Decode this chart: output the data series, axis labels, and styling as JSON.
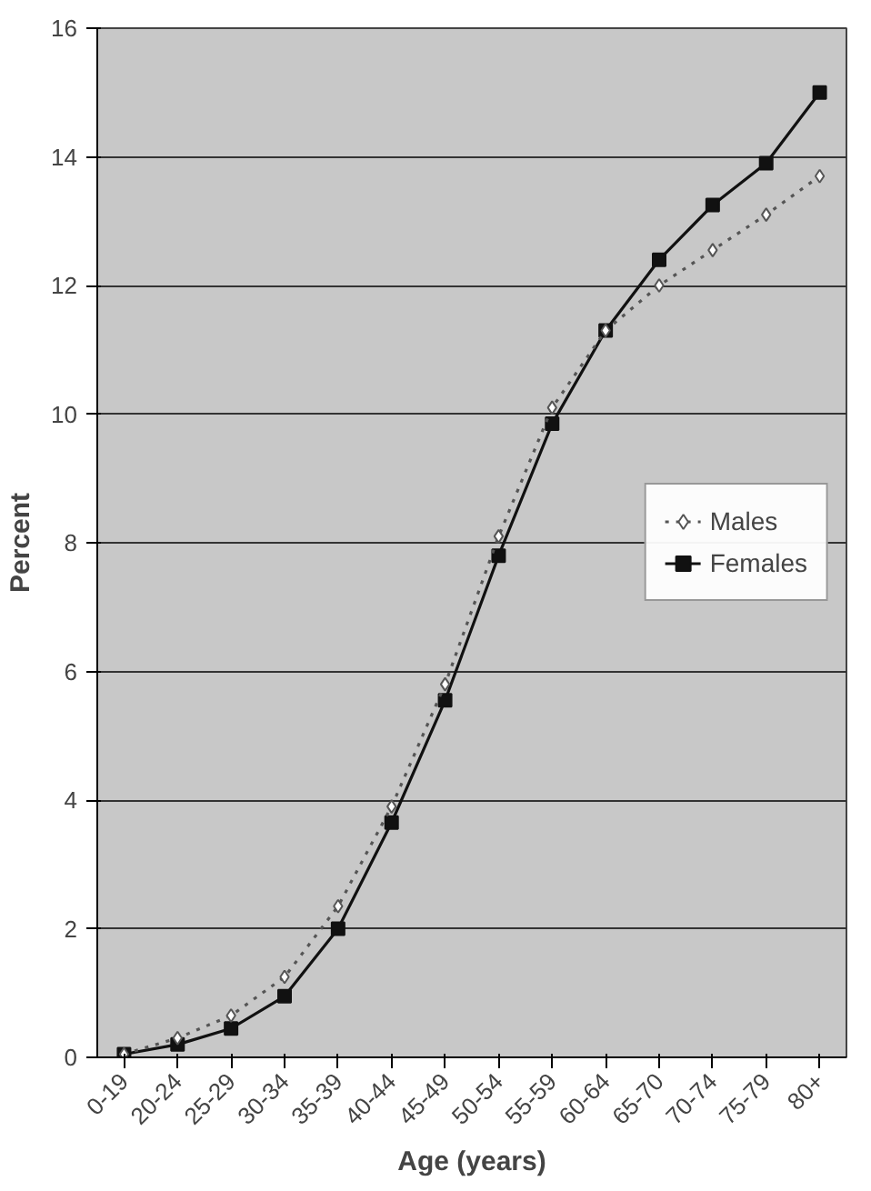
{
  "chart_data": {
    "type": "line",
    "xlabel": "Age (years)",
    "ylabel": "Percent",
    "categories": [
      "0-19",
      "20-24",
      "25-29",
      "30-34",
      "35-39",
      "40-44",
      "45-49",
      "50-54",
      "55-59",
      "60-64",
      "65-70",
      "70-74",
      "75-79",
      "80+"
    ],
    "ylim": [
      0,
      16
    ],
    "yticks": [
      0,
      2,
      4,
      6,
      8,
      10,
      12,
      14,
      16
    ],
    "grid": "y",
    "legend": "right",
    "series": [
      {
        "name": "Males",
        "color": "#555555",
        "marker": "diamond",
        "line_style": "dotted",
        "values": [
          0.05,
          0.3,
          0.65,
          1.25,
          2.35,
          3.9,
          5.8,
          8.1,
          10.1,
          11.3,
          12.0,
          12.55,
          13.1,
          13.7
        ]
      },
      {
        "name": "Females",
        "color": "#111111",
        "marker": "square",
        "line_style": "solid",
        "values": [
          0.05,
          0.2,
          0.45,
          0.95,
          2.0,
          3.65,
          5.55,
          7.8,
          9.85,
          11.3,
          12.4,
          13.25,
          13.9,
          15.0
        ]
      }
    ]
  }
}
